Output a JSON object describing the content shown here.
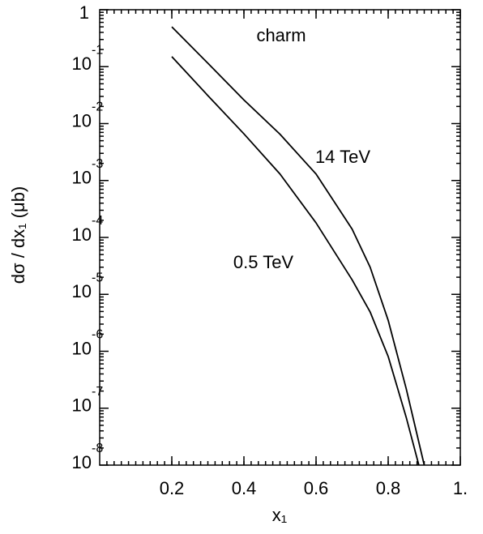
{
  "chart_data": {
    "type": "line",
    "xlabel": "x₁",
    "ylabel": "dσ / dx₁ (μb)",
    "annotations": [
      "charm",
      "14 TeV",
      "0.5 TeV"
    ],
    "log_y": true,
    "xlim": [
      0,
      1
    ],
    "ylim": [
      1e-08,
      1
    ],
    "xticks": [
      0.2,
      0.4,
      0.6,
      0.8,
      {
        "value": 1,
        "label": "1."
      }
    ],
    "yticks": [
      {
        "value": 1e-08,
        "label": "10",
        "exponent": "-8"
      },
      {
        "value": 1e-07,
        "label": "10",
        "exponent": "-7"
      },
      {
        "value": 1e-06,
        "label": "10",
        "exponent": "-6"
      },
      {
        "value": 1e-05,
        "label": "10",
        "exponent": "-5"
      },
      {
        "value": 0.0001,
        "label": "10",
        "exponent": "-4"
      },
      {
        "value": 0.001,
        "label": "10",
        "exponent": "-3"
      },
      {
        "value": 0.01,
        "label": "10",
        "exponent": "-2"
      },
      {
        "value": 0.1,
        "label": "10",
        "exponent": "-1"
      },
      1
    ],
    "series": [
      {
        "color": "#000000",
        "x": [
          0.2,
          0.3,
          0.4,
          0.5,
          0.6,
          0.7,
          0.75,
          0.8,
          0.85,
          0.9
        ],
        "values": [
          0.5,
          0.115,
          0.026,
          0.0065,
          0.0013,
          0.00014,
          3e-05,
          3.5e-06,
          2.2e-07,
          1e-08
        ]
      },
      {
        "color": "#000000",
        "x": [
          0.2,
          0.3,
          0.4,
          0.5,
          0.6,
          0.7,
          0.75,
          0.8,
          0.85,
          0.885
        ],
        "values": [
          0.15,
          0.031,
          0.0066,
          0.0013,
          0.00018,
          1.8e-05,
          4.9e-06,
          8.1e-07,
          6.9e-08,
          1e-08
        ]
      }
    ]
  }
}
